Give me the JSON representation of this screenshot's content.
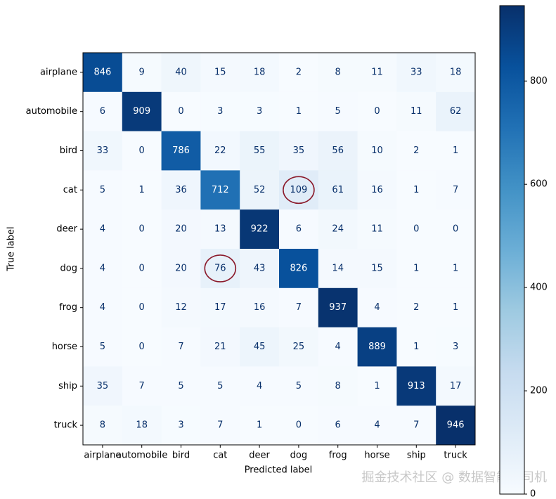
{
  "chart_data": {
    "type": "heatmap",
    "categories": [
      "airplane",
      "automobile",
      "bird",
      "cat",
      "deer",
      "dog",
      "frog",
      "horse",
      "ship",
      "truck"
    ],
    "values": [
      [
        846,
        9,
        40,
        15,
        18,
        2,
        8,
        11,
        33,
        18
      ],
      [
        6,
        909,
        0,
        3,
        3,
        1,
        5,
        0,
        11,
        62
      ],
      [
        33,
        0,
        786,
        22,
        55,
        35,
        56,
        10,
        2,
        1
      ],
      [
        5,
        1,
        36,
        712,
        52,
        109,
        61,
        16,
        1,
        7
      ],
      [
        4,
        0,
        20,
        13,
        922,
        6,
        24,
        11,
        0,
        0
      ],
      [
        4,
        0,
        20,
        76,
        43,
        826,
        14,
        15,
        1,
        1
      ],
      [
        4,
        0,
        12,
        17,
        16,
        7,
        937,
        4,
        2,
        1
      ],
      [
        5,
        0,
        7,
        21,
        45,
        25,
        4,
        889,
        1,
        3
      ],
      [
        35,
        7,
        5,
        5,
        4,
        5,
        8,
        1,
        913,
        17
      ],
      [
        8,
        18,
        3,
        7,
        1,
        0,
        6,
        4,
        7,
        946
      ]
    ],
    "xlabel": "Predicted label",
    "ylabel": "True label",
    "colormap": "Blues",
    "clim": [
      0,
      946
    ],
    "cticks": [
      0,
      200,
      400,
      600,
      800
    ],
    "watermark": "掘金技术社区 @ 数据智能老司机"
  }
}
